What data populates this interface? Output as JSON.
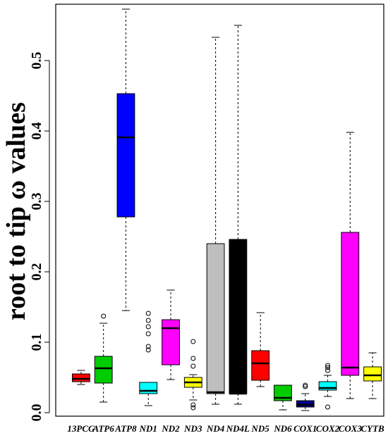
{
  "chart_data": {
    "type": "boxplot",
    "title": "",
    "xlabel": "",
    "ylabel": "root to tip  ω values",
    "ylim": [
      -0.005,
      0.58
    ],
    "y_ticks": [
      0.0,
      0.1,
      0.2,
      0.3,
      0.4,
      0.5
    ],
    "y_tick_labels": [
      "0.0",
      "0.1",
      "0.2",
      "0.3",
      "0.4",
      "0.5"
    ],
    "categories": [
      "13PCG",
      "ATP6",
      "ATP8",
      "ND1",
      "ND2",
      "ND3",
      "ND4",
      "ND4L",
      "ND5",
      "ND6",
      "COX1",
      "COX2",
      "COX3",
      "CYTB"
    ],
    "colors": [
      "#ff0000",
      "#00cc00",
      "#0000ff",
      "#00ffff",
      "#ff00ff",
      "#ffff00",
      "#bebebe",
      "#000000",
      "#ff0000",
      "#00cc00",
      "#00008b",
      "#00ffff",
      "#ff00ff",
      "#ffff00"
    ],
    "median_color": "#000000",
    "boxes": [
      {
        "label": "13PCG",
        "whisker_low": 0.04,
        "q1": 0.044,
        "median": 0.048,
        "q3": 0.055,
        "whisker_high": 0.06,
        "outliers": []
      },
      {
        "label": "ATP6",
        "whisker_low": 0.015,
        "q1": 0.042,
        "median": 0.063,
        "q3": 0.08,
        "whisker_high": 0.127,
        "outliers": [
          0.137
        ]
      },
      {
        "label": "ATP8",
        "whisker_low": 0.145,
        "q1": 0.278,
        "median": 0.391,
        "q3": 0.453,
        "whisker_high": 0.573,
        "outliers": []
      },
      {
        "label": "ND1",
        "whisker_low": 0.01,
        "q1": 0.027,
        "median": 0.031,
        "q3": 0.043,
        "whisker_high": 0.043,
        "outliers": [
          0.089,
          0.094,
          0.112,
          0.122,
          0.131,
          0.141
        ]
      },
      {
        "label": "ND2",
        "whisker_low": 0.047,
        "q1": 0.068,
        "median": 0.12,
        "q3": 0.132,
        "whisker_high": 0.174,
        "outliers": []
      },
      {
        "label": "ND3",
        "whisker_low": 0.018,
        "q1": 0.036,
        "median": 0.043,
        "q3": 0.05,
        "whisker_high": 0.054,
        "outliers": [
          0.007,
          0.011,
          0.066,
          0.077,
          0.101
        ]
      },
      {
        "label": "ND4",
        "whisker_low": 0.012,
        "q1": 0.027,
        "median": 0.029,
        "q3": 0.24,
        "whisker_high": 0.533,
        "outliers": []
      },
      {
        "label": "ND4L",
        "whisker_low": 0.012,
        "q1": 0.027,
        "median": 0.027,
        "q3": 0.246,
        "whisker_high": 0.55,
        "outliers": []
      },
      {
        "label": "ND5",
        "whisker_low": 0.037,
        "q1": 0.046,
        "median": 0.07,
        "q3": 0.088,
        "whisker_high": 0.142,
        "outliers": []
      },
      {
        "label": "ND6",
        "whisker_low": 0.004,
        "q1": 0.017,
        "median": 0.021,
        "q3": 0.039,
        "whisker_high": 0.039,
        "outliers": []
      },
      {
        "label": "COX1",
        "whisker_low": 0.003,
        "q1": 0.008,
        "median": 0.011,
        "q3": 0.017,
        "whisker_high": 0.027,
        "outliers": [
          0.037,
          0.039
        ]
      },
      {
        "label": "COX2",
        "whisker_low": 0.023,
        "q1": 0.032,
        "median": 0.035,
        "q3": 0.044,
        "whisker_high": 0.053,
        "outliers": [
          0.008,
          0.06,
          0.064,
          0.067
        ]
      },
      {
        "label": "COX3",
        "whisker_low": 0.02,
        "q1": 0.053,
        "median": 0.064,
        "q3": 0.256,
        "whisker_high": 0.398,
        "outliers": []
      },
      {
        "label": "CYTB",
        "whisker_low": 0.02,
        "q1": 0.045,
        "median": 0.053,
        "q3": 0.065,
        "whisker_high": 0.085,
        "outliers": []
      }
    ],
    "grid": false,
    "legend": "none"
  }
}
